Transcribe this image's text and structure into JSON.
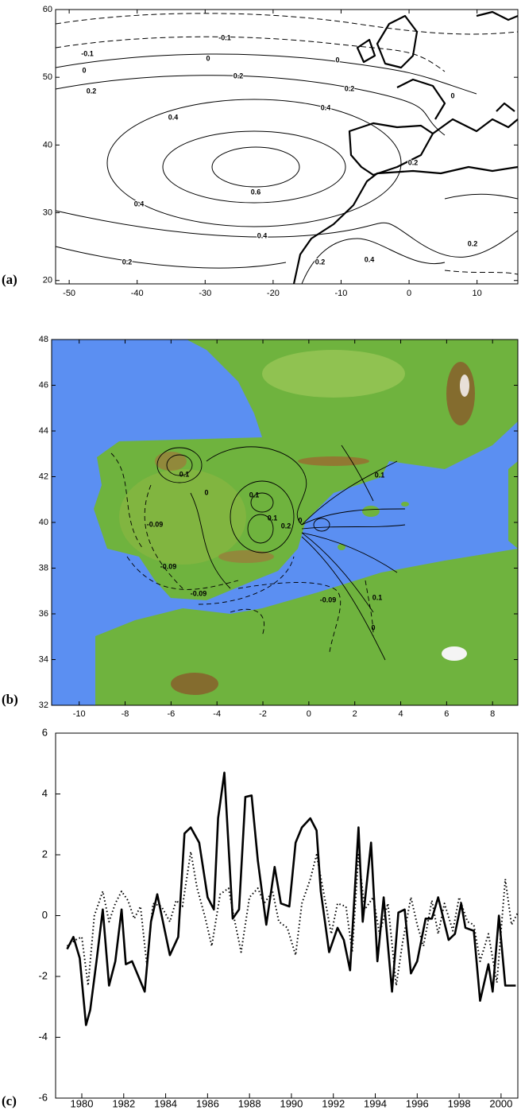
{
  "chart_data": [
    {
      "type": "contour",
      "label": "(a)",
      "xlim": [
        -52,
        16
      ],
      "ylim": [
        19.5,
        60
      ],
      "xticks": [
        -50,
        -40,
        -30,
        -20,
        -10,
        0,
        10
      ],
      "yticks": [
        20,
        30,
        40,
        50,
        60
      ],
      "contour_labels": [
        -0.1,
        -0.1,
        0,
        0,
        0,
        0,
        0.2,
        0.2,
        0.2,
        0.2,
        0.2,
        0.2,
        0.2,
        0.4,
        0.4,
        0.4,
        0.4,
        0.4,
        0.6
      ]
    },
    {
      "type": "contour_map",
      "label": "(b)",
      "xlim": [
        -11.2,
        9.1
      ],
      "ylim": [
        32,
        48
      ],
      "xticks": [
        -10,
        -8,
        -6,
        -4,
        -2,
        0,
        2,
        4,
        6,
        8
      ],
      "yticks": [
        32,
        34,
        36,
        38,
        40,
        42,
        44,
        46,
        48
      ],
      "contour_labels": [
        0.1,
        0,
        -0.09,
        -0.09,
        0.1,
        0.1,
        0.2,
        0,
        0.1,
        0.1,
        0,
        -0.09,
        -0.09
      ]
    },
    {
      "type": "line",
      "label": "(c)",
      "xlim": [
        1978.75,
        2000.8
      ],
      "ylim": [
        -6,
        6
      ],
      "xticks": [
        1980,
        1982,
        1984,
        1986,
        1988,
        1990,
        1992,
        1994,
        1996,
        1998,
        2000
      ],
      "yticks": [
        -6,
        -4,
        -2,
        0,
        2,
        4,
        6
      ],
      "series": [
        {
          "style": "solid",
          "color": "#000000",
          "x": [
            1979.3,
            1979.6,
            1979.9,
            1980.2,
            1980.4,
            1980.7,
            1981.0,
            1981.3,
            1981.6,
            1981.9,
            1982.1,
            1982.4,
            1982.7,
            1983.0,
            1983.3,
            1983.6,
            1984.2,
            1984.6,
            1984.9,
            1985.2,
            1985.6,
            1986.0,
            1986.3,
            1986.5,
            1986.8,
            1987.2,
            1987.5,
            1987.8,
            1988.1,
            1988.4,
            1988.8,
            1989.2,
            1989.5,
            1989.9,
            1990.2,
            1990.5,
            1990.9,
            1991.2,
            1991.4,
            1991.8,
            1992.2,
            1992.5,
            1992.8,
            1993.2,
            1993.4,
            1993.8,
            1994.1,
            1994.4,
            1994.8,
            1995.1,
            1995.4,
            1995.7,
            1996.0,
            1996.4,
            1996.7,
            1997.0,
            1997.5,
            1997.8,
            1998.1,
            1998.3,
            1998.7,
            1999.0,
            1999.4,
            1999.6,
            1999.9,
            2000.2,
            2000.7
          ],
          "values": [
            -1.1,
            -0.7,
            -1.4,
            -3.6,
            -3.1,
            -1.5,
            0.2,
            -2.3,
            -1.5,
            0.2,
            -1.6,
            -1.5,
            -2.0,
            -2.5,
            -0.2,
            0.7,
            -1.3,
            -0.7,
            2.7,
            2.9,
            2.4,
            0.6,
            0.2,
            3.2,
            4.7,
            -0.1,
            0.2,
            3.9,
            3.95,
            1.8,
            -0.3,
            1.6,
            0.4,
            0.3,
            2.4,
            2.9,
            3.2,
            2.8,
            0.8,
            -1.2,
            -0.4,
            -0.8,
            -1.8,
            2.9,
            -0.2,
            2.4,
            -1.5,
            0.6,
            -2.5,
            0.1,
            0.2,
            -1.9,
            -1.5,
            -0.1,
            -0.1,
            0.6,
            -0.8,
            -0.6,
            0.4,
            -0.4,
            -0.5,
            -2.8,
            -1.6,
            -2.5,
            0.0,
            -2.3,
            -2.3
          ]
        },
        {
          "style": "dotted",
          "color": "#000000",
          "x": [
            1979.3,
            1979.7,
            1980.0,
            1980.3,
            1980.6,
            1981.0,
            1981.3,
            1981.6,
            1981.9,
            1982.2,
            1982.5,
            1982.8,
            1983.1,
            1983.4,
            1983.8,
            1984.2,
            1984.5,
            1984.8,
            1985.2,
            1985.5,
            1985.9,
            1986.2,
            1986.6,
            1987.0,
            1987.3,
            1987.6,
            1988.0,
            1988.4,
            1988.7,
            1989.1,
            1989.4,
            1989.8,
            1990.2,
            1990.5,
            1990.9,
            1991.2,
            1991.5,
            1991.9,
            1992.2,
            1992.6,
            1992.9,
            1993.2,
            1993.5,
            1993.9,
            1994.2,
            1994.6,
            1995.0,
            1995.3,
            1995.7,
            1996.0,
            1996.3,
            1996.7,
            1997.0,
            1997.3,
            1997.7,
            1998.0,
            1998.4,
            1998.7,
            1999.0,
            1999.4,
            1999.8,
            2000.2,
            2000.5,
            2000.8
          ],
          "values": [
            -1.0,
            -0.8,
            -0.7,
            -2.3,
            0.0,
            0.8,
            -0.2,
            0.4,
            0.8,
            0.5,
            -0.1,
            0.3,
            -1.6,
            0.4,
            0.3,
            -0.2,
            0.5,
            0.3,
            2.1,
            0.9,
            -0.1,
            -1.0,
            0.7,
            0.9,
            -0.2,
            -1.2,
            0.6,
            0.9,
            0.4,
            0.8,
            -0.2,
            -0.4,
            -1.3,
            0.4,
            1.2,
            2.0,
            0.9,
            -0.6,
            0.4,
            0.3,
            -1.2,
            2.0,
            0.2,
            0.6,
            -0.6,
            0.4,
            -2.3,
            -0.9,
            0.6,
            -0.3,
            -1.0,
            0.5,
            -0.6,
            0.4,
            -0.5,
            0.6,
            -0.2,
            -0.3,
            -1.5,
            -0.6,
            -2.2,
            1.2,
            -0.3,
            0.1
          ]
        }
      ]
    }
  ]
}
